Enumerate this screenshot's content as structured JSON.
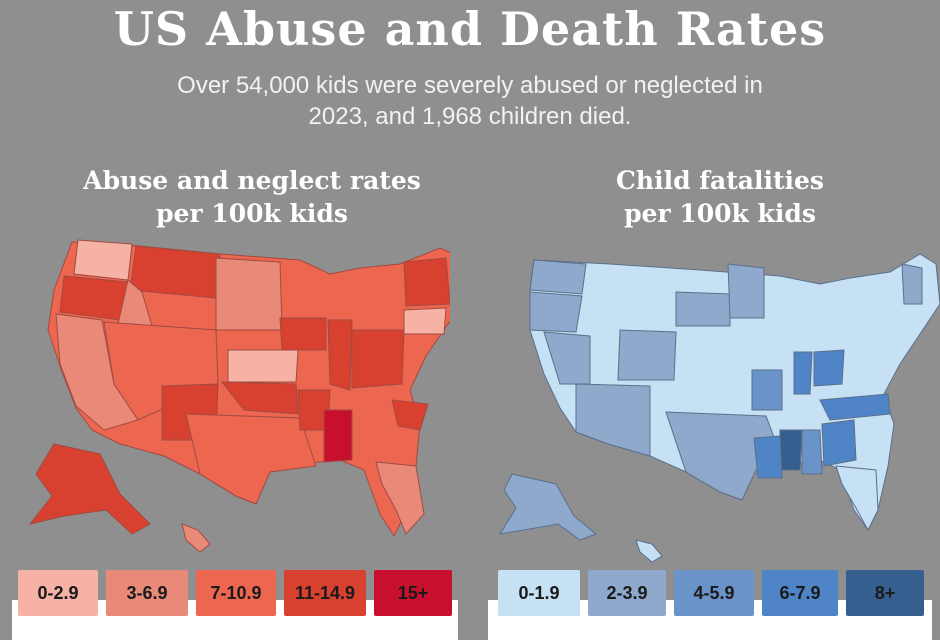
{
  "header": {
    "title": "US Abuse and Death Rates",
    "subtitle_line1": "Over 54,000 kids were severely abused or neglected in",
    "subtitle_line2": "2023, and 1,968 children died."
  },
  "abuse_map": {
    "title_line1": "Abuse and neglect rates",
    "title_line2": "per 100k kids",
    "legend": [
      {
        "label": "0-2.9",
        "color": "#f6b2a4"
      },
      {
        "label": "3-6.9",
        "color": "#e98a78"
      },
      {
        "label": "7-10.9",
        "color": "#ec6650"
      },
      {
        "label": "11-14.9",
        "color": "#d8412f"
      },
      {
        "label": "15+",
        "color": "#c8102e"
      }
    ]
  },
  "fatality_map": {
    "title_line1": "Child fatalities",
    "title_line2": "per 100k kids",
    "legend": [
      {
        "label": "0-1.9",
        "color": "#c6e0f4"
      },
      {
        "label": "2-3.9",
        "color": "#8fa9cc"
      },
      {
        "label": "4-5.9",
        "color": "#6a94c9"
      },
      {
        "label": "6-7.9",
        "color": "#4f85c6"
      },
      {
        "label": "8+",
        "color": "#355f8f"
      }
    ]
  }
}
